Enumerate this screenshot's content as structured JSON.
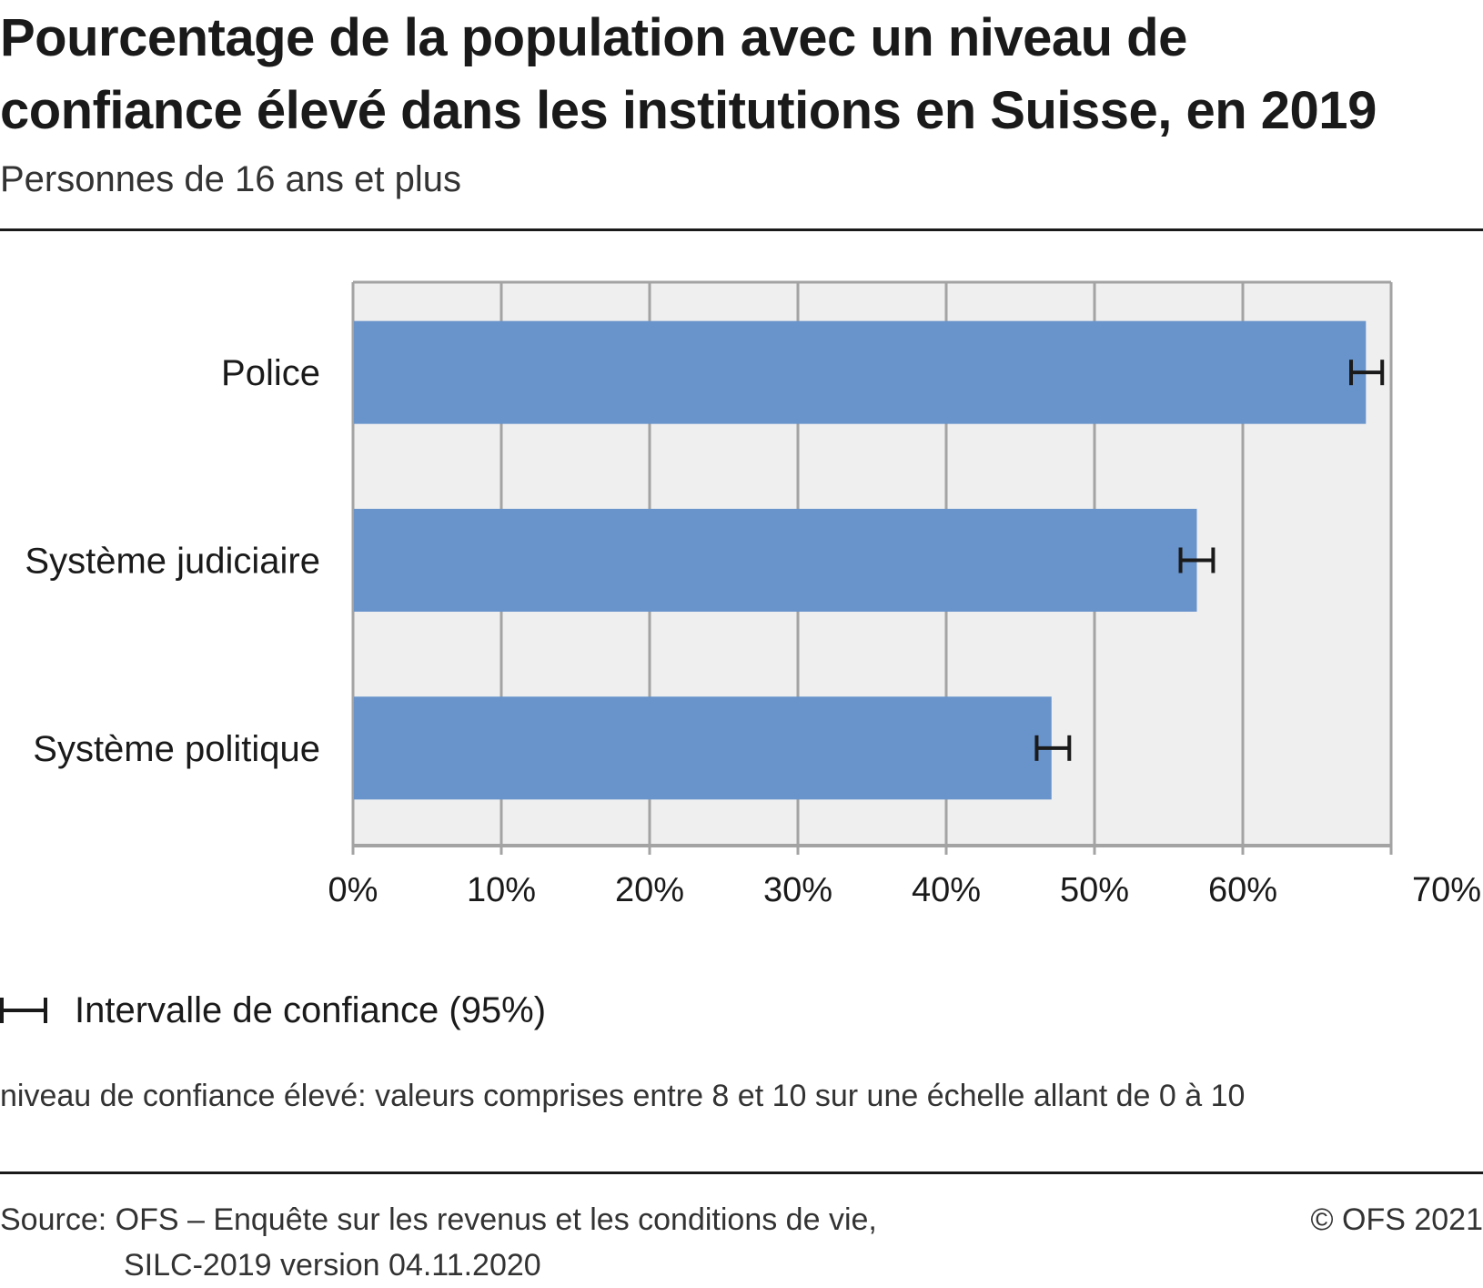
{
  "chart_data": {
    "type": "bar",
    "orientation": "horizontal",
    "title": "Pourcentage de la population avec un niveau de confiance élevé dans les institutions en Suisse, en 2019",
    "title_lines": [
      "Pourcentage de la population avec un niveau de",
      "confiance élevé dans les institutions en Suisse, en 2019"
    ],
    "subtitle": "Personnes de 16 ans et plus",
    "categories": [
      "Police",
      "Système judiciaire",
      "Système politique"
    ],
    "values": [
      68.3,
      56.9,
      47.1
    ],
    "ci_low": [
      67.3,
      55.8,
      46.1
    ],
    "ci_high": [
      69.4,
      58.0,
      48.3
    ],
    "xlim": [
      0,
      70
    ],
    "xticks": [
      0,
      10,
      20,
      30,
      40,
      50,
      60,
      70
    ],
    "xtick_labels": [
      "0%",
      "10%",
      "20%",
      "30%",
      "40%",
      "50%",
      "60%",
      "70%"
    ],
    "xlabel": "",
    "ylabel": "",
    "grid": true,
    "bar_color": "#6893cb",
    "plot_background": "#efefef",
    "grid_color": "#a3a3a3",
    "legend": {
      "entries": [
        "Intervalle de confiance (95%)"
      ],
      "placement": "bottom-left"
    }
  },
  "note": "niveau de confiance élevé: valeurs comprises entre 8 et 10 sur une échelle allant de 0 à 10",
  "source": {
    "line1": "Source: OFS – Enquête sur les revenus et les conditions de vie,",
    "line2": "SILC-2019 version 04.11.2020"
  },
  "copyright": "© OFS 2021"
}
